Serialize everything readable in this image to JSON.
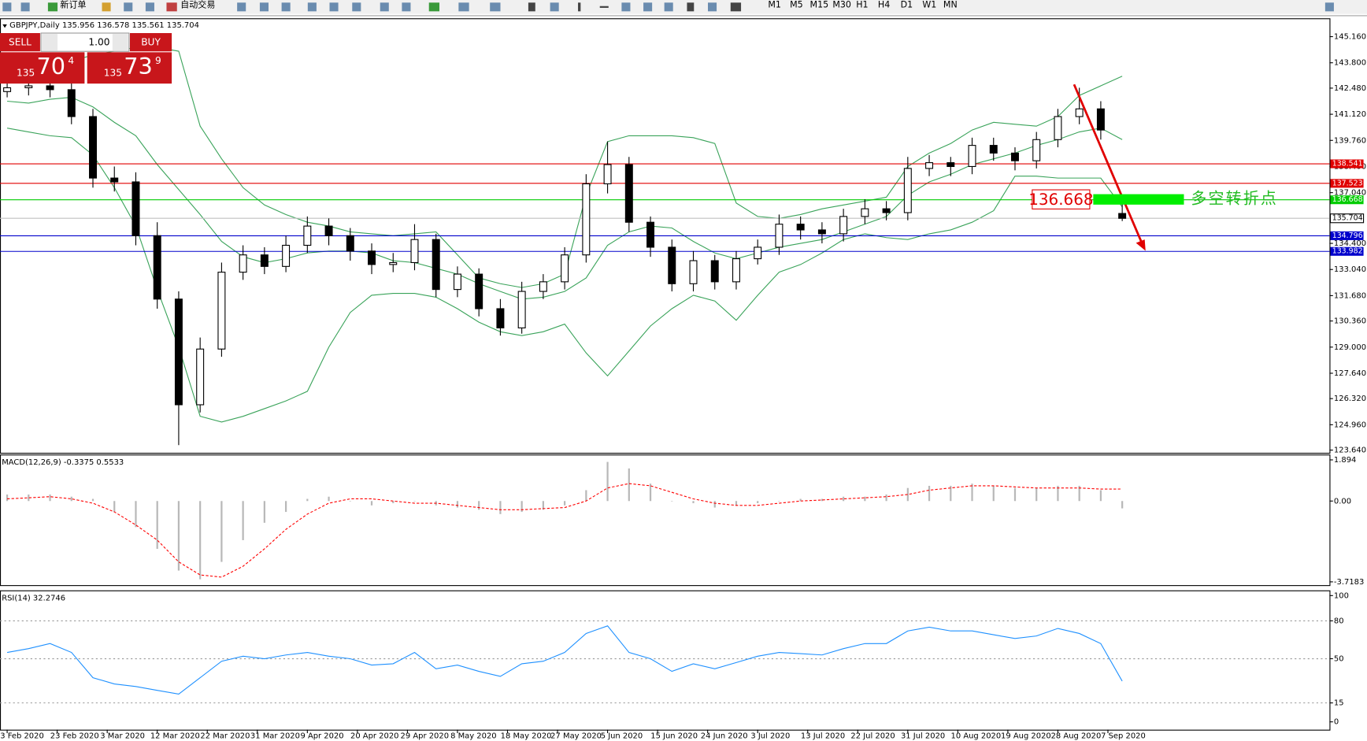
{
  "toolbar": {
    "new_order": "新订单",
    "auto_trading": "自动交易",
    "timeframes": [
      "M1",
      "M5",
      "M15",
      "M30",
      "H1",
      "H4",
      "D1",
      "W1",
      "MN"
    ]
  },
  "trade_panel": {
    "sell": "SELL",
    "lot": "1.00",
    "buy": "BUY",
    "sell_big": "135",
    "sell_pips": "70",
    "sell_point": "4",
    "buy_big": "135",
    "buy_pips": "73",
    "buy_point": "9"
  },
  "annotations": {
    "price_box": "136.668",
    "turning_point": "多空转折点"
  },
  "chart_data": [
    {
      "type": "candlestick",
      "title": "GBPJPY,Daily  135.956 136.578 135.561 135.704",
      "x": [
        0,
        3,
        6,
        9,
        12,
        15,
        18,
        21,
        24,
        27,
        30,
        33,
        36,
        39,
        42,
        45,
        48,
        51,
        54,
        57,
        60,
        63,
        66,
        69,
        72,
        75,
        78,
        81,
        84,
        87,
        90,
        93,
        96,
        99,
        102,
        105,
        108,
        111,
        114,
        117,
        120,
        123,
        126,
        129,
        132,
        135,
        138,
        141,
        144,
        147,
        150,
        153,
        156
      ],
      "open": [
        142.3,
        142.5,
        142.6,
        142.4,
        141.0,
        137.8,
        137.6,
        134.8,
        131.5,
        126.0,
        128.9,
        132.9,
        133.8,
        133.2,
        134.3,
        135.3,
        134.8,
        134.0,
        133.3,
        133.4,
        134.6,
        132.0,
        132.8,
        131.0,
        130.0,
        131.9,
        132.4,
        133.8,
        137.5,
        138.5,
        135.5,
        134.2,
        132.3,
        133.5,
        132.4,
        133.6,
        134.2,
        135.4,
        135.1,
        134.9,
        135.8,
        136.2,
        136.0,
        138.3,
        138.6,
        138.4,
        139.5,
        139.1,
        138.7,
        139.8,
        141.0,
        141.4,
        135.956
      ],
      "high": [
        142.9,
        143.0,
        143.0,
        142.8,
        141.4,
        138.4,
        138.1,
        135.5,
        131.9,
        129.5,
        133.4,
        134.3,
        134.2,
        134.8,
        135.8,
        135.7,
        135.2,
        134.4,
        133.9,
        135.4,
        134.9,
        133.2,
        133.1,
        131.5,
        132.4,
        132.8,
        134.2,
        138.0,
        139.7,
        138.9,
        135.8,
        134.6,
        134.0,
        133.8,
        134.0,
        134.6,
        135.9,
        135.8,
        135.5,
        136.2,
        136.7,
        136.6,
        138.9,
        139.0,
        138.9,
        139.9,
        139.9,
        139.4,
        140.2,
        141.4,
        142.5,
        141.8,
        136.578
      ],
      "low": [
        142.0,
        142.1,
        142.0,
        140.6,
        137.3,
        137.1,
        134.3,
        131.0,
        123.9,
        125.6,
        128.5,
        132.5,
        132.8,
        132.9,
        133.9,
        134.3,
        133.5,
        132.8,
        132.9,
        133.0,
        131.6,
        131.6,
        130.6,
        129.6,
        129.7,
        131.5,
        132.0,
        133.4,
        137.0,
        135.0,
        133.7,
        131.9,
        131.9,
        132.0,
        132.0,
        133.3,
        133.8,
        134.6,
        134.4,
        134.5,
        135.4,
        135.6,
        135.6,
        137.9,
        137.9,
        138.0,
        138.7,
        138.2,
        138.3,
        139.4,
        140.6,
        139.8,
        135.561
      ],
      "close": [
        142.5,
        142.6,
        142.4,
        141.0,
        137.8,
        137.6,
        134.8,
        131.5,
        126.0,
        128.9,
        132.9,
        133.8,
        133.2,
        134.3,
        135.3,
        134.8,
        134.0,
        133.3,
        133.4,
        134.6,
        132.0,
        132.8,
        131.0,
        130.0,
        131.9,
        132.4,
        133.8,
        137.5,
        138.5,
        135.5,
        134.2,
        132.3,
        133.5,
        132.4,
        133.6,
        134.2,
        135.4,
        135.1,
        134.9,
        135.8,
        136.2,
        136.0,
        138.3,
        138.6,
        138.4,
        139.5,
        139.1,
        138.7,
        139.8,
        141.0,
        141.4,
        140.3,
        135.704
      ],
      "up_color": "#ffffff",
      "down_color": "#000000",
      "bands": [
        {
          "color": "#3aa35a",
          "values": [
            143.0,
            143.3,
            143.6,
            143.9,
            144.2,
            144.4,
            144.6,
            144.6,
            144.4,
            140.5,
            138.8,
            137.3,
            136.4,
            135.9,
            135.5,
            135.3,
            135.0,
            134.9,
            134.8,
            134.9,
            135.0,
            133.8,
            132.6,
            132.3,
            132.1,
            132.3,
            132.8,
            136.9,
            139.7,
            140.0,
            140.0,
            140.0,
            139.9,
            139.6,
            136.5,
            135.8,
            135.7,
            135.9,
            136.2,
            136.4,
            136.6,
            136.8,
            138.4,
            139.1,
            139.6,
            140.3,
            140.7,
            140.6,
            140.5,
            141.0,
            142.1,
            142.6,
            143.1
          ]
        },
        {
          "color": "#3aa35a",
          "values": [
            141.8,
            141.7,
            141.9,
            142.0,
            141.5,
            140.7,
            140.0,
            138.5,
            137.2,
            135.9,
            134.5,
            133.7,
            133.4,
            133.6,
            133.9,
            134.0,
            134.0,
            133.9,
            133.5,
            133.4,
            133.1,
            132.8,
            132.3,
            131.9,
            131.5,
            131.6,
            131.9,
            132.6,
            134.3,
            135.0,
            135.3,
            135.2,
            134.5,
            133.9,
            133.6,
            133.9,
            134.2,
            134.4,
            134.6,
            135.0,
            135.4,
            135.8,
            136.9,
            137.6,
            138.0,
            138.5,
            138.8,
            139.1,
            139.5,
            139.8,
            140.2,
            140.4,
            139.8
          ]
        },
        {
          "color": "#3aa35a",
          "values": [
            140.4,
            140.2,
            140.0,
            139.9,
            139.0,
            137.3,
            135.3,
            132.0,
            129.0,
            125.4,
            125.1,
            125.4,
            125.8,
            126.2,
            126.7,
            129.0,
            130.8,
            131.7,
            131.8,
            131.8,
            131.6,
            131.0,
            130.3,
            129.8,
            129.6,
            129.8,
            130.2,
            128.7,
            127.5,
            128.8,
            130.1,
            131.0,
            131.7,
            131.4,
            130.4,
            131.7,
            132.9,
            133.3,
            133.9,
            134.6,
            134.9,
            134.7,
            134.6,
            134.9,
            135.1,
            135.5,
            136.1,
            137.9,
            137.9,
            137.8,
            137.8,
            137.8,
            136.3
          ]
        }
      ],
      "hlines": [
        {
          "value": 138.541,
          "color": "#e00000"
        },
        {
          "value": 137.523,
          "color": "#e00000"
        },
        {
          "value": 136.668,
          "color": "#00cc00"
        },
        {
          "value": 135.704,
          "color": "#c0c0c0"
        },
        {
          "value": 134.796,
          "color": "#0000cc"
        },
        {
          "value": 133.982,
          "color": "#0000cc"
        }
      ],
      "xlim": [
        -1,
        185
      ],
      "ylim": [
        123.5,
        146.07
      ],
      "yticks": [
        {
          "value": 145.16,
          "label": "145.160"
        },
        {
          "value": 143.8,
          "label": "143.800"
        },
        {
          "value": 142.48,
          "label": "142.480"
        },
        {
          "value": 141.12,
          "label": "141.120"
        },
        {
          "value": 139.76,
          "label": "139.760"
        },
        {
          "value": 138.4,
          "label": "138.400"
        },
        {
          "value": 137.04,
          "label": "137.040"
        },
        {
          "value": 134.4,
          "label": "134.400"
        },
        {
          "value": 133.04,
          "label": "133.040"
        },
        {
          "value": 131.68,
          "label": "131.680"
        },
        {
          "value": 130.36,
          "label": "130.360"
        },
        {
          "value": 129,
          "label": "129.000"
        },
        {
          "value": 127.64,
          "label": "127.640"
        },
        {
          "value": 126.32,
          "label": "126.320"
        },
        {
          "value": 124.96,
          "label": "124.960"
        },
        {
          "value": 123.64,
          "label": "123.640"
        }
      ],
      "xticks": [
        {
          "value": 0,
          "label": "3 Feb 2020"
        },
        {
          "value": 7,
          "label": "23 Feb 2020"
        },
        {
          "value": 14,
          "label": "3 Mar 2020"
        },
        {
          "value": 21,
          "label": "12 Mar 2020"
        },
        {
          "value": 28,
          "label": "22 Mar 2020"
        },
        {
          "value": 35,
          "label": "31 Mar 2020"
        },
        {
          "value": 42,
          "label": "9 Apr 2020"
        },
        {
          "value": 49,
          "label": "20 Apr 2020"
        },
        {
          "value": 56,
          "label": "29 Apr 2020"
        },
        {
          "value": 63,
          "label": "8 May 2020"
        },
        {
          "value": 70,
          "label": "18 May 2020"
        },
        {
          "value": 77,
          "label": "27 May 2020"
        },
        {
          "value": 84,
          "label": "5 Jun 2020"
        },
        {
          "value": 91,
          "label": "15 Jun 2020"
        },
        {
          "value": 98,
          "label": "24 Jun 2020"
        },
        {
          "value": 105,
          "label": "3 Jul 2020"
        },
        {
          "value": 112,
          "label": "13 Jul 2020"
        },
        {
          "value": 119,
          "label": "22 Jul 2020"
        },
        {
          "value": 126,
          "label": "31 Jul 2020"
        },
        {
          "value": 133,
          "label": "10 Aug 2020"
        },
        {
          "value": 140,
          "label": "19 Aug 2020"
        },
        {
          "value": 147,
          "label": "28 Aug 2020"
        },
        {
          "value": 154,
          "label": "7 Sep 2020"
        }
      ]
    },
    {
      "type": "macd",
      "title": "MACD(12,26,9) -0.3375 0.5533",
      "histogram": {
        "color": "#b8b8b8",
        "values": [
          0.3,
          0.3,
          0.3,
          0.2,
          0.1,
          -0.5,
          -1.2,
          -2.2,
          -3.2,
          -3.6,
          -2.8,
          -1.8,
          -1.0,
          -0.5,
          0.1,
          0.2,
          0.0,
          -0.2,
          -0.1,
          0.0,
          -0.2,
          -0.3,
          -0.4,
          -0.6,
          -0.5,
          -0.4,
          -0.2,
          0.5,
          1.8,
          1.5,
          0.8,
          0.0,
          -0.1,
          -0.3,
          -0.2,
          -0.1,
          0.0,
          0.1,
          0.1,
          0.2,
          0.2,
          0.3,
          0.6,
          0.7,
          0.7,
          0.8,
          0.7,
          0.6,
          0.6,
          0.7,
          0.7,
          0.5,
          -0.3375
        ]
      },
      "signal": {
        "color": "#ff0000",
        "values": [
          0.1,
          0.15,
          0.2,
          0.1,
          -0.1,
          -0.5,
          -1.1,
          -1.8,
          -2.8,
          -3.4,
          -3.5,
          -3.0,
          -2.2,
          -1.3,
          -0.6,
          -0.1,
          0.1,
          0.1,
          0.0,
          -0.1,
          -0.1,
          -0.2,
          -0.3,
          -0.4,
          -0.4,
          -0.35,
          -0.3,
          0.0,
          0.6,
          0.8,
          0.7,
          0.4,
          0.1,
          -0.1,
          -0.2,
          -0.2,
          -0.1,
          0.0,
          0.05,
          0.1,
          0.15,
          0.2,
          0.3,
          0.5,
          0.6,
          0.7,
          0.7,
          0.65,
          0.6,
          0.6,
          0.6,
          0.55,
          0.5533
        ]
      },
      "ylim": [
        -3.87,
        2.1
      ],
      "yticks": [
        1.894,
        {
          "value": 0,
          "label": "0.00"
        },
        -3.7183
      ]
    },
    {
      "type": "rsi",
      "title": "RSI(14) 32.2746",
      "color": "#1e90ff",
      "values": [
        55,
        58,
        62,
        55,
        35,
        30,
        28,
        25,
        22,
        35,
        48,
        52,
        50,
        53,
        55,
        52,
        50,
        45,
        46,
        55,
        42,
        45,
        40,
        36,
        46,
        48,
        55,
        70,
        76,
        55,
        50,
        40,
        46,
        42,
        47,
        52,
        55,
        54,
        53,
        58,
        62,
        62,
        72,
        75,
        72,
        72,
        69,
        66,
        68,
        74,
        70,
        62,
        32.2746
      ],
      "levels": [
        80,
        50,
        15
      ],
      "ylim": [
        -6.2,
        103.45
      ],
      "yticks": [
        100,
        80,
        50,
        15,
        0
      ]
    }
  ]
}
